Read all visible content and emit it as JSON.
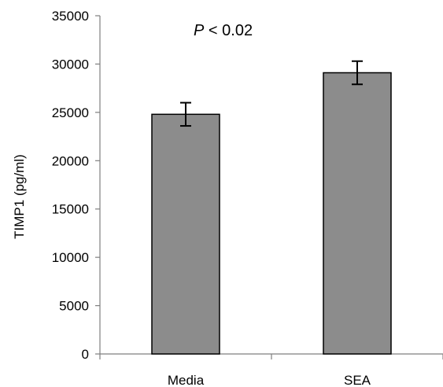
{
  "chart_data": {
    "type": "bar",
    "categories": [
      "Media",
      "SEA"
    ],
    "values": [
      24800,
      29100
    ],
    "error": [
      1200,
      1200
    ],
    "ylabel": "TIMP1 (pg/ml)",
    "ylim": [
      0,
      35000
    ],
    "yticks": [
      0,
      5000,
      10000,
      15000,
      20000,
      25000,
      30000,
      35000
    ],
    "annotation": {
      "prefix": "P",
      "text": " < 0.02"
    },
    "grid": false,
    "legend": "none",
    "colors": {
      "bar": "#8c8c8c",
      "axis": "#7f7f7f"
    }
  }
}
